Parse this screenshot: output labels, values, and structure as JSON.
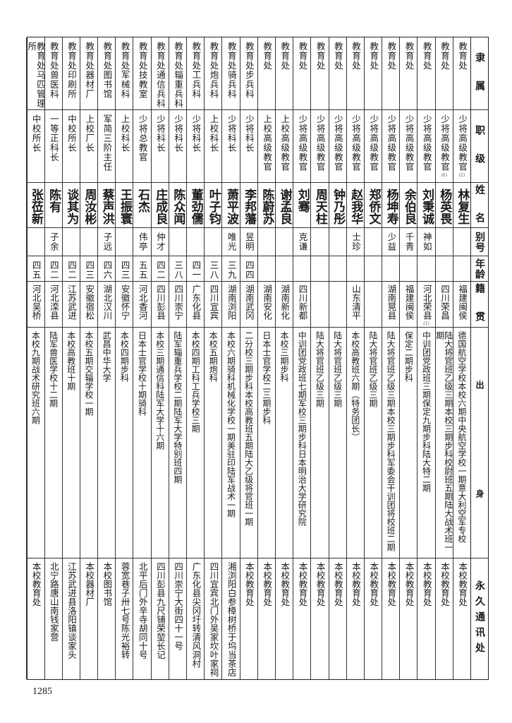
{
  "headers": [
    {
      "label": "隶　属"
    },
    {
      "label": "职　级"
    },
    {
      "label": "姓　名"
    },
    {
      "label": "别号"
    },
    {
      "label": "年龄"
    },
    {
      "label": "籍　贯"
    },
    {
      "label": "出　　　　　　身"
    },
    {
      "label": "永久通讯处"
    }
  ],
  "people": [
    {
      "affiliation": "教育处",
      "rank": "少将高级教官",
      "rank_note": "(2)",
      "name": "林复生",
      "alias": "",
      "age": "",
      "native_place": "福建闽侯",
      "native_note": "",
      "background": "德国航空学校本校六期中央航空学校一期意大利空军专校",
      "address": "本校教育处"
    },
    {
      "affiliation": "教育处",
      "rank": "少将高级教官",
      "rank_note": "(6)",
      "name": "杨英畏",
      "alias": "",
      "age": "",
      "native_place": "四川荣昌",
      "native_note": "",
      "background": "陆大将官班乙级三期本校三期步科校尉班五期陆大战术班一期",
      "address": "本校教育处"
    },
    {
      "affiliation": "教育处",
      "rank": "少将高级教官",
      "rank_note": "",
      "name": "刘秉诚",
      "alias": "神如",
      "age": "",
      "native_place": "河北荣县",
      "native_note": "(1)",
      "background": "中训团党政班三期保定九期步科陆大特二期",
      "address": "本校教育处"
    },
    {
      "affiliation": "教育处",
      "rank": "少将高级教官",
      "rank_note": "",
      "name": "余伯良",
      "alias": "千青",
      "age": "",
      "native_place": "福建闽侯",
      "native_note": "",
      "background": "保定二期步科",
      "address": "本校教育处"
    },
    {
      "affiliation": "教育处",
      "rank": "少将高级教官",
      "rank_note": "",
      "name": "杨坤寿",
      "alias": "少益",
      "age": "",
      "native_place": "湖南晃县",
      "native_note": "",
      "background": "陆大将官班乙级三期本校三期步科军委会干训团将校班二期",
      "address": "本校教育处"
    },
    {
      "affiliation": "教育处",
      "rank": "少将高级教官",
      "rank_note": "",
      "name": "郑侨文",
      "alias": "",
      "age": "",
      "native_place": "",
      "native_note": "",
      "background": "陆大将官班乙级三期",
      "address": "本校教育处"
    },
    {
      "affiliation": "教育处",
      "rank": "少将高级教官",
      "rank_note": "",
      "name": "赵我华",
      "alias": "士珍",
      "age": "",
      "native_place": "山东清平",
      "native_note": "",
      "background": "本校高教班六期（特务团长）",
      "address": "本校教育处"
    },
    {
      "affiliation": "教育处",
      "rank": "少将高级教官",
      "rank_note": "",
      "name": "钟乃彤",
      "alias": "",
      "age": "",
      "native_place": "",
      "native_note": "",
      "background": "陆大将官班乙级三期",
      "address": "本校教育处"
    },
    {
      "affiliation": "教育处",
      "rank": "少将高级教官",
      "rank_note": "",
      "name": "周天柱",
      "alias": "",
      "age": "",
      "native_place": "",
      "native_note": "",
      "background": "陆大将官班乙级三期",
      "address": "本校教育处"
    },
    {
      "affiliation": "教育处",
      "rank": "少将高级教官",
      "rank_note": "",
      "name": "刘骞",
      "alias": "克谦",
      "age": "",
      "native_place": "四川新都",
      "native_note": "",
      "background": "中训团党政班七期军校三期步科日本明治大学研究院",
      "address": "本校教育处"
    },
    {
      "affiliation": "教育处",
      "rank": "上校高级教官",
      "rank_note": "",
      "name": "谢孟良",
      "alias": "",
      "age": "",
      "native_place": "湖南新化",
      "native_note": "",
      "background": "本校三期步科",
      "address": "本校教育处"
    },
    {
      "affiliation": "教育处",
      "rank": "上校高级教官",
      "rank_note": "",
      "name": "陈蔚苏",
      "alias": "",
      "age": "",
      "native_place": "湖南安化",
      "native_note": "",
      "background": "日本士官学校二三期步科",
      "address": "本校教育处"
    },
    {
      "affiliation": "教育处步兵科",
      "rank": "少将科长",
      "rank_note": "",
      "name": "李邦藩",
      "alias": "昱明",
      "age": "四四",
      "native_place": "湖南武冈",
      "native_note": "",
      "background": "二分校三期步科本校高教班五期陆大乙级将官班一期",
      "address": "本校教育处"
    },
    {
      "affiliation": "教育处骑兵科",
      "rank": "少将科长",
      "rank_note": "",
      "name": "萧平波",
      "alias": "唯光",
      "age": "三九",
      "native_place": "湖南浏阳",
      "native_note": "",
      "background": "本校六期骑科机械化学校一期美驻印陆军战术一期",
      "address": "湘浏阳白参樟树桥于坞当茶店"
    },
    {
      "affiliation": "教育处炮兵科",
      "rank": "上校科长",
      "rank_note": "",
      "name": "叶子钧",
      "alias": "",
      "age": "三八",
      "native_place": "四川宜宾",
      "native_note": "",
      "background": "本校五期炮科",
      "address": "四川宜宾北门外吴家坎叶家祠"
    },
    {
      "affiliation": "教育处工兵科",
      "rank": "少将科长",
      "rank_note": "",
      "name": "董劲儒",
      "alias": "",
      "age": "四一",
      "native_place": "广东化县",
      "native_note": "",
      "background": "本校四期工科工兵学校三期",
      "address": "广东化县尖冈圩转清风洞村"
    },
    {
      "affiliation": "教育处辎重兵科",
      "rank": "少将科长",
      "rank_note": "",
      "name": "陈众闻",
      "alias": "",
      "age": "三八",
      "native_place": "四川崇宁",
      "native_note": "",
      "background": "陆军辎重兵学校二期陆军大学特别班四期",
      "address": "四川崇宁大街四十一号"
    },
    {
      "affiliation": "教育处通信兵科",
      "rank": "少将科长",
      "rank_note": "",
      "name": "庄成良",
      "alias": "仲才",
      "age": "四二",
      "native_place": "四川彭县",
      "native_note": "",
      "background": "本校三期通信科陆军大学十六期",
      "address": "四川彭县九尺铺荣堃长记"
    },
    {
      "affiliation": "教育处技教室",
      "rank": "少将总教官",
      "rank_note": "",
      "name": "石杰",
      "alias": "伟亭",
      "age": "五五",
      "native_place": "河北香河",
      "native_note": "",
      "background": "日本士官学校十期骑科",
      "address": "北平后门外辛寺胡同十号"
    },
    {
      "affiliation": "教育处军械科",
      "rank": "上校科长",
      "rank_note": "",
      "name": "王振寰",
      "alias": "",
      "age": "四三",
      "native_place": "安徽怀宁",
      "native_note": "",
      "background": "本校四期步科",
      "address": "蓉宽巷子卅七号陈光裕转"
    },
    {
      "affiliation": "教育处图书馆",
      "rank": "军简三阶主任",
      "rank_note": "",
      "name": "蔡声洪",
      "alias": "子远",
      "age": "四六",
      "native_place": "湖北汉川",
      "native_note": "",
      "background": "武昌中华大学",
      "address": "本校图书馆"
    },
    {
      "affiliation": "教育处器材厂",
      "rank": "上校厂长",
      "rank_note": "",
      "name": "周汝彬",
      "alias": "",
      "age": "四三",
      "native_place": "安徽宿松",
      "native_note": "",
      "background": "本校五期交辎学校一期",
      "address": "本校器材厂"
    },
    {
      "affiliation": "教育处印刷所",
      "rank": "中校所长",
      "rank_note": "",
      "name": "谈其为",
      "alias": "",
      "age": "四二",
      "native_place": "江苏武进",
      "native_note": "",
      "background": "本校高教班十期",
      "address": "江苏武进县洛阳镇谈家头"
    },
    {
      "affiliation": "教育处兽医科",
      "rank": "一等正科长",
      "rank_note": "",
      "name": "陈有",
      "alias": "子余",
      "age": "四二",
      "native_place": "河北滦县",
      "native_note": "",
      "background": "陆军兽医学校十二期",
      "address": "北宁路唐山南钱家营"
    },
    {
      "affiliation": "教育处马匹管理所",
      "rank": "中校所长",
      "rank_note": "",
      "name": "张莅新",
      "alias": "",
      "age": "四五",
      "native_place": "河北吴桥",
      "native_note": "",
      "background": "本校九期战术研究班六期",
      "address": "本校教育处"
    }
  ],
  "page_number": "1285"
}
